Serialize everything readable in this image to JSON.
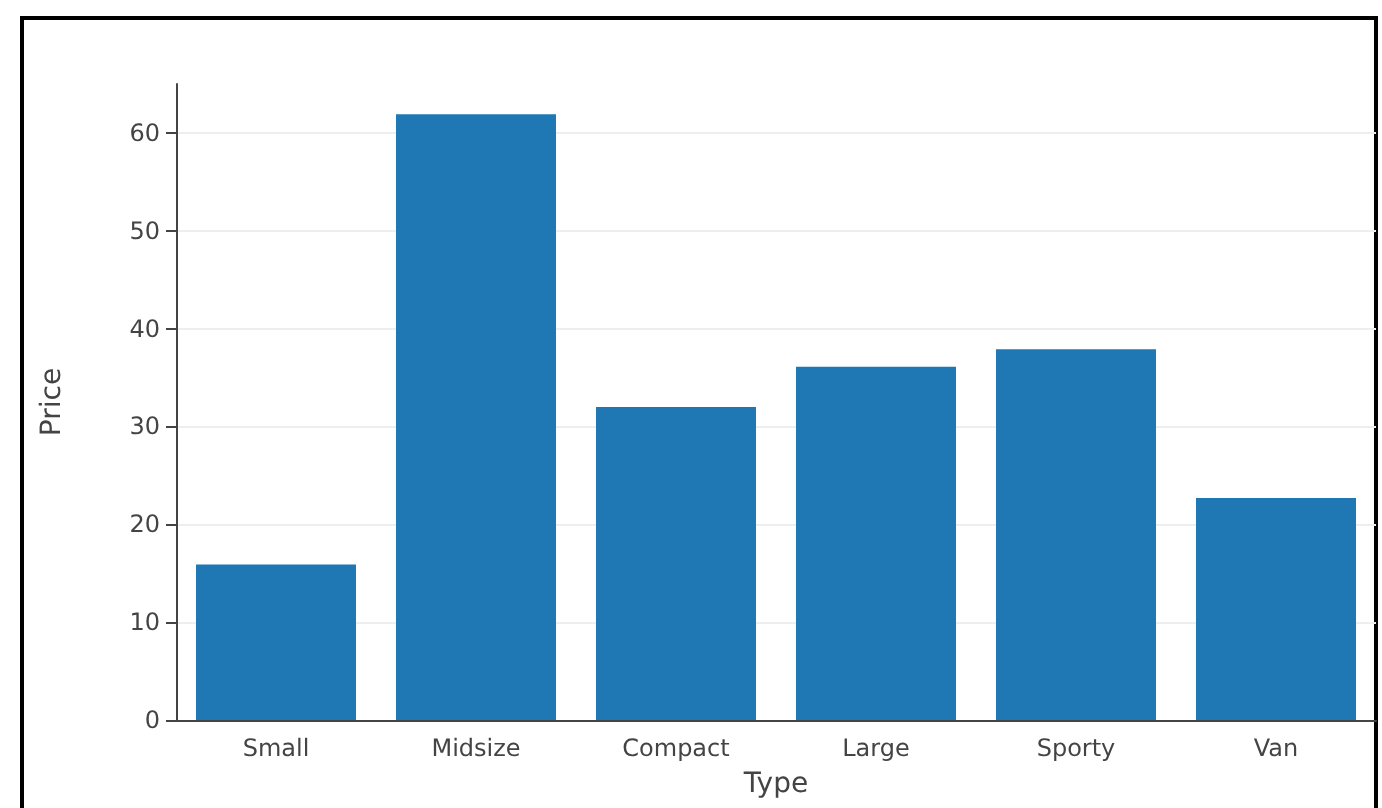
{
  "chart_data": {
    "type": "bar",
    "xlabel": "Type",
    "ylabel": "Price",
    "categories": [
      "Small",
      "Midsize",
      "Compact",
      "Large",
      "Sporty",
      "Van"
    ],
    "values": [
      15.9,
      61.9,
      32.0,
      36.1,
      37.9,
      22.7
    ],
    "color": "#1f77b4",
    "ylim": [
      0,
      65
    ],
    "yticks": [
      0,
      10,
      20,
      30,
      40,
      50,
      60
    ],
    "grid": "y"
  }
}
